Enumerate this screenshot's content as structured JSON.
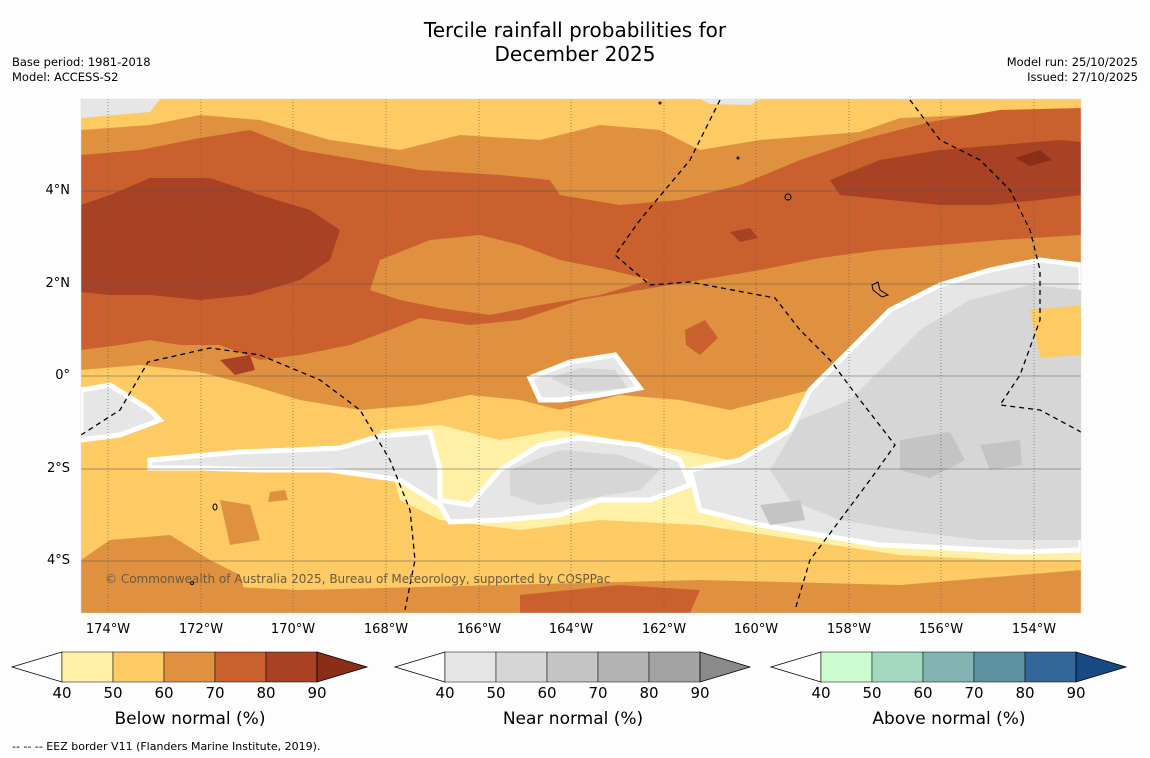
{
  "header": {
    "title_line1": "Tercile rainfall probabilities for",
    "title_line2": "December 2025",
    "base_period": "Base period: 1981-2018",
    "model": "Model: ACCESS-S2",
    "model_run": "Model run: 25/10/2025",
    "issued": "Issued: 27/10/2025"
  },
  "map": {
    "lat_labels": [
      "4°N",
      "2°N",
      "0°",
      "2°S",
      "4°S"
    ],
    "lon_labels": [
      "174°W",
      "172°W",
      "170°W",
      "168°W",
      "166°W",
      "164°W",
      "162°W",
      "160°W",
      "158°W",
      "156°W",
      "154°W"
    ],
    "credit": "© Commonwealth of Australia 2025, Bureau of Meteorology, supported by COSPPac",
    "extent": {
      "lon_min": -174.6,
      "lon_max": -152.9,
      "lat_min": -5.1,
      "lat_max": 6.0
    }
  },
  "colorbars": [
    {
      "title": "Below normal (%)",
      "ticks": [
        "40",
        "50",
        "60",
        "70",
        "80",
        "90"
      ],
      "colors": [
        "#fff0a6",
        "#fdca64",
        "#e0913f",
        "#c9602e",
        "#a94224",
        "#8a2e18"
      ]
    },
    {
      "title": "Near normal (%)",
      "ticks": [
        "40",
        "50",
        "60",
        "70",
        "80",
        "90"
      ],
      "colors": [
        "#e6e6e6",
        "#d6d6d6",
        "#c4c4c4",
        "#b3b3b3",
        "#a3a3a3",
        "#8a8a8a"
      ]
    },
    {
      "title": "Above normal (%)",
      "ticks": [
        "40",
        "50",
        "60",
        "70",
        "80",
        "90"
      ],
      "colors": [
        "#cbfbcf",
        "#a3d9bf",
        "#82b5b2",
        "#5c91a0",
        "#336699",
        "#174a85"
      ]
    }
  ],
  "footnote": "--  --  -- EEZ border V11 (Flanders Marine Institute, 2019)."
}
